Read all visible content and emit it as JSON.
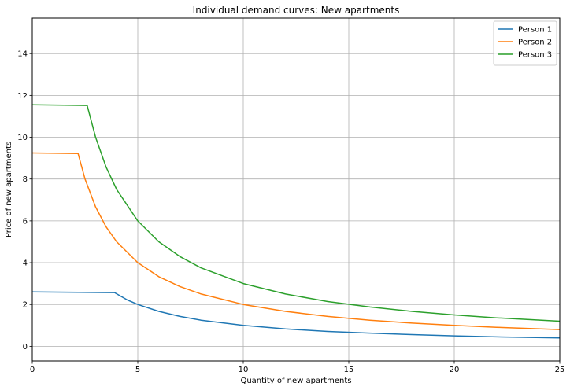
{
  "chart_data": {
    "type": "line",
    "title": "Individual demand curves: New apartments",
    "xlabel": "Quantity of new apartments",
    "ylabel": "Price of new apartments",
    "xlim": [
      0,
      25
    ],
    "ylim": [
      -0.7,
      15.7
    ],
    "xticks": [
      0,
      5,
      10,
      15,
      20,
      25
    ],
    "yticks": [
      0,
      2,
      4,
      6,
      8,
      10,
      12,
      14
    ],
    "grid": true,
    "legend_position": "top-right",
    "series": [
      {
        "name": "Person 1",
        "color": "#1f77b4",
        "x": [
          0,
          3.9,
          4.5,
          5,
          6,
          7,
          8,
          10,
          12,
          14,
          16,
          18,
          20,
          22,
          25
        ],
        "y": [
          2.6,
          2.57,
          2.22,
          2.0,
          1.67,
          1.43,
          1.25,
          1.0,
          0.83,
          0.71,
          0.63,
          0.56,
          0.5,
          0.45,
          0.4
        ]
      },
      {
        "name": "Person 2",
        "color": "#ff7f0e",
        "x": [
          0,
          2.17,
          2.5,
          3,
          3.5,
          4,
          5,
          6,
          7,
          8,
          10,
          12,
          14,
          16,
          18,
          20,
          22,
          25
        ],
        "y": [
          9.25,
          9.22,
          8.0,
          6.67,
          5.71,
          5.0,
          4.0,
          3.33,
          2.86,
          2.5,
          2.0,
          1.67,
          1.43,
          1.25,
          1.11,
          1.0,
          0.91,
          0.8
        ]
      },
      {
        "name": "Person 3",
        "color": "#2ca02c",
        "x": [
          0,
          2.6,
          3,
          3.5,
          4,
          5,
          6,
          7,
          8,
          10,
          12,
          14,
          16,
          18,
          20,
          22,
          25
        ],
        "y": [
          11.55,
          11.52,
          10.0,
          8.57,
          7.5,
          6.0,
          5.0,
          4.29,
          3.75,
          3.0,
          2.5,
          2.14,
          1.88,
          1.67,
          1.5,
          1.36,
          1.2
        ]
      }
    ]
  }
}
